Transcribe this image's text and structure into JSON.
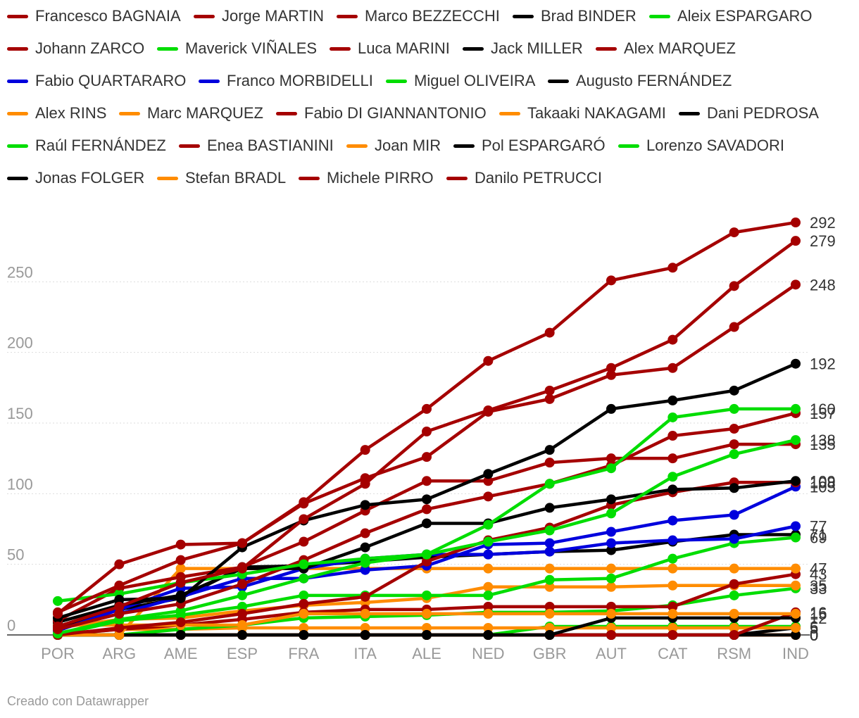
{
  "credit": "Creado con Datawrapper",
  "colors": {
    "red": "#a50000",
    "black": "#000000",
    "green": "#00dd00",
    "blue": "#0000dd",
    "orange": "#ff8c00",
    "axis": "#999999",
    "grid": "#dddddd"
  },
  "chart_data": {
    "type": "line",
    "x": [
      "POR",
      "ARG",
      "AME",
      "ESP",
      "FRA",
      "ITA",
      "ALE",
      "NED",
      "GBR",
      "AUT",
      "CAT",
      "RSM",
      "IND"
    ],
    "ylim": [
      0,
      300
    ],
    "yticks": [
      0,
      50,
      100,
      150,
      200,
      250
    ],
    "legend_position": "top",
    "series": [
      {
        "name": "Francesco BAGNAIA",
        "color": "red",
        "values": [
          16,
          35,
          53,
          65,
          94,
          131,
          160,
          194,
          214,
          251,
          260,
          285,
          292
        ]
      },
      {
        "name": "Jorge MARTIN",
        "color": "red",
        "values": [
          6,
          20,
          37,
          47,
          82,
          107,
          144,
          159,
          173,
          189,
          209,
          247,
          279
        ]
      },
      {
        "name": "Marco BEZZECCHI",
        "color": "red",
        "values": [
          15,
          50,
          64,
          65,
          93,
          111,
          126,
          158,
          167,
          184,
          189,
          218,
          248
        ]
      },
      {
        "name": "Brad BINDER",
        "color": "black",
        "values": [
          12,
          25,
          26,
          62,
          81,
          92,
          96,
          114,
          131,
          160,
          166,
          173,
          192
        ]
      },
      {
        "name": "Aleix ESPARGARO",
        "color": "green",
        "values": [
          24,
          29,
          37,
          43,
          50,
          54,
          57,
          78,
          107,
          118,
          154,
          160,
          160
        ]
      },
      {
        "name": "Johann ZARCO",
        "color": "red",
        "values": [
          4,
          15,
          22,
          36,
          53,
          72,
          89,
          98,
          107,
          120,
          141,
          146,
          157
        ]
      },
      {
        "name": "Maverick VIÑALES",
        "color": "green",
        "values": [
          1,
          11,
          17,
          28,
          40,
          51,
          57,
          66,
          74,
          86,
          112,
          128,
          138
        ]
      },
      {
        "name": "Luca MARINI",
        "color": "red",
        "values": [
          10,
          33,
          41,
          48,
          66,
          88,
          109,
          109,
          122,
          125,
          125,
          135,
          135
        ]
      },
      {
        "name": "Jack MILLER",
        "color": "black",
        "values": [
          9,
          21,
          28,
          47,
          47,
          62,
          79,
          79,
          90,
          96,
          103,
          104,
          109
        ]
      },
      {
        "name": "Alex MARQUEZ",
        "color": "red",
        "values": [
          0,
          5,
          9,
          15,
          22,
          27,
          52,
          67,
          76,
          92,
          101,
          108,
          108
        ]
      },
      {
        "name": "Fabio QUARTARARO",
        "color": "blue",
        "values": [
          4,
          15,
          27,
          40,
          40,
          46,
          49,
          64,
          65,
          73,
          81,
          85,
          105
        ]
      },
      {
        "name": "Franco MORBIDELLI",
        "color": "blue",
        "values": [
          3,
          18,
          33,
          34,
          47,
          54,
          57,
          57,
          59,
          65,
          67,
          68,
          77
        ]
      },
      {
        "name": "Miguel OLIVEIRA",
        "color": "green",
        "values": [
          0,
          10,
          14,
          20,
          28,
          28,
          28,
          28,
          39,
          40,
          54,
          65,
          69
        ]
      },
      {
        "name": "Augusto FERNÁNDEZ",
        "color": "black",
        "values": [
          6,
          18,
          26,
          48,
          49,
          52,
          55,
          57,
          59,
          60,
          66,
          71,
          71
        ]
      },
      {
        "name": "Alex RINS",
        "color": "orange",
        "values": [
          0,
          0,
          47,
          47,
          47,
          47,
          47,
          47,
          47,
          47,
          47,
          47,
          47
        ]
      },
      {
        "name": "Marc MARQUEZ",
        "color": "orange",
        "values": [
          7,
          7,
          7,
          7,
          15,
          15,
          15,
          15,
          15,
          15,
          15,
          15,
          15
        ]
      },
      {
        "name": "Fabio DI GIANNANTONIO",
        "color": "red",
        "values": [
          0,
          4,
          7,
          11,
          16,
          18,
          18,
          20,
          20,
          20,
          20,
          36,
          43
        ]
      },
      {
        "name": "Takaaki NAKAGAMI",
        "color": "orange",
        "values": [
          5,
          11,
          12,
          17,
          21,
          23,
          26,
          34,
          34,
          34,
          35,
          35,
          35
        ]
      },
      {
        "name": "Dani PEDROSA",
        "color": "black",
        "values": [
          0,
          0,
          0,
          0,
          0,
          0,
          0,
          0,
          0,
          12,
          12,
          12,
          12
        ]
      },
      {
        "name": "Raúl FERNÁNDEZ",
        "color": "green",
        "values": [
          0,
          0,
          4,
          7,
          12,
          13,
          14,
          16,
          16,
          17,
          21,
          28,
          33
        ]
      },
      {
        "name": "Enea BASTIANINI",
        "color": "red",
        "values": [
          0,
          0,
          0,
          0,
          0,
          0,
          0,
          0,
          0,
          0,
          0,
          0,
          16
        ]
      },
      {
        "name": "Joan MIR",
        "color": "orange",
        "values": [
          0,
          4,
          4,
          5,
          5,
          5,
          5,
          5,
          5,
          5,
          5,
          5,
          5
        ]
      },
      {
        "name": "Pol ESPARGARÓ",
        "color": "black",
        "values": [
          0,
          0,
          0,
          0,
          0,
          0,
          0,
          0,
          0,
          0,
          0,
          0,
          5
        ]
      },
      {
        "name": "Lorenzo SAVADORI",
        "color": "green",
        "values": [
          0,
          0,
          0,
          0,
          0,
          0,
          0,
          0,
          6,
          6,
          6,
          6,
          6
        ]
      },
      {
        "name": "Jonas FOLGER",
        "color": "black",
        "values": [
          0,
          0,
          0,
          0,
          0,
          0,
          0,
          0,
          0,
          0,
          0,
          0,
          0
        ]
      },
      {
        "name": "Stefan BRADL",
        "color": "orange",
        "values": [
          0,
          0,
          0,
          0,
          0,
          0,
          0,
          0,
          0,
          0,
          0,
          0,
          0
        ]
      },
      {
        "name": "Michele PIRRO",
        "color": "red",
        "values": [
          0,
          0,
          0,
          0,
          0,
          0,
          0,
          0,
          0,
          0,
          0,
          0,
          0
        ]
      },
      {
        "name": "Danilo PETRUCCI",
        "color": "red",
        "values": [
          0,
          0,
          0,
          0,
          0,
          0,
          0,
          0,
          0,
          0,
          0,
          0,
          0
        ]
      }
    ]
  }
}
